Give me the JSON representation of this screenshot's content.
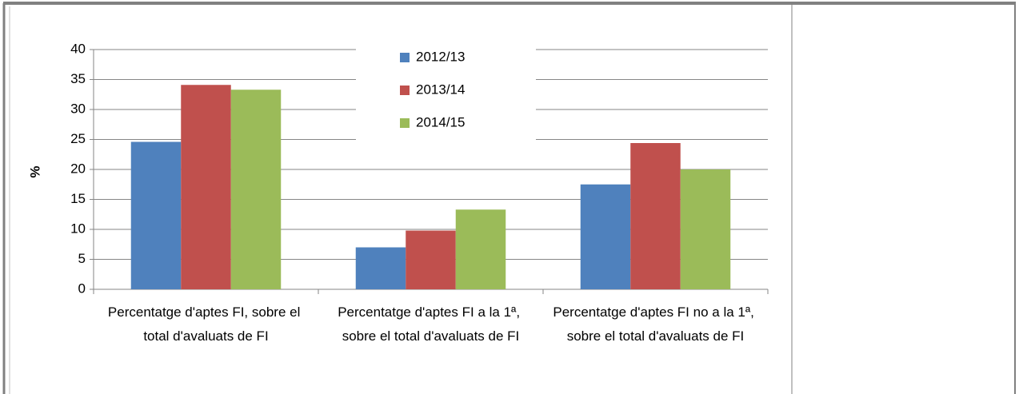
{
  "chart_data": {
    "type": "bar",
    "y_label": "%",
    "categories": [
      "Percentatge d'aptes FI, sobre el total d'avaluats de FI",
      "Percentatge d'aptes FI a la 1ª, sobre el total d'avaluats de FI",
      "Percentatge d'aptes FI no a la 1ª, sobre el total d'avaluats de FI"
    ],
    "series": [
      {
        "name": "2012/13",
        "color": "#4f81bd",
        "values": [
          24.6,
          7.0,
          17.5
        ]
      },
      {
        "name": "2013/14",
        "color": "#c0504d",
        "values": [
          34.1,
          9.8,
          24.4
        ]
      },
      {
        "name": "2014/15",
        "color": "#9bbb59",
        "values": [
          33.3,
          13.3,
          20.0
        ]
      }
    ],
    "ylim": [
      0,
      40
    ],
    "yticks": [
      0,
      5,
      10,
      15,
      20,
      25,
      30,
      35,
      40
    ],
    "grid": true
  }
}
